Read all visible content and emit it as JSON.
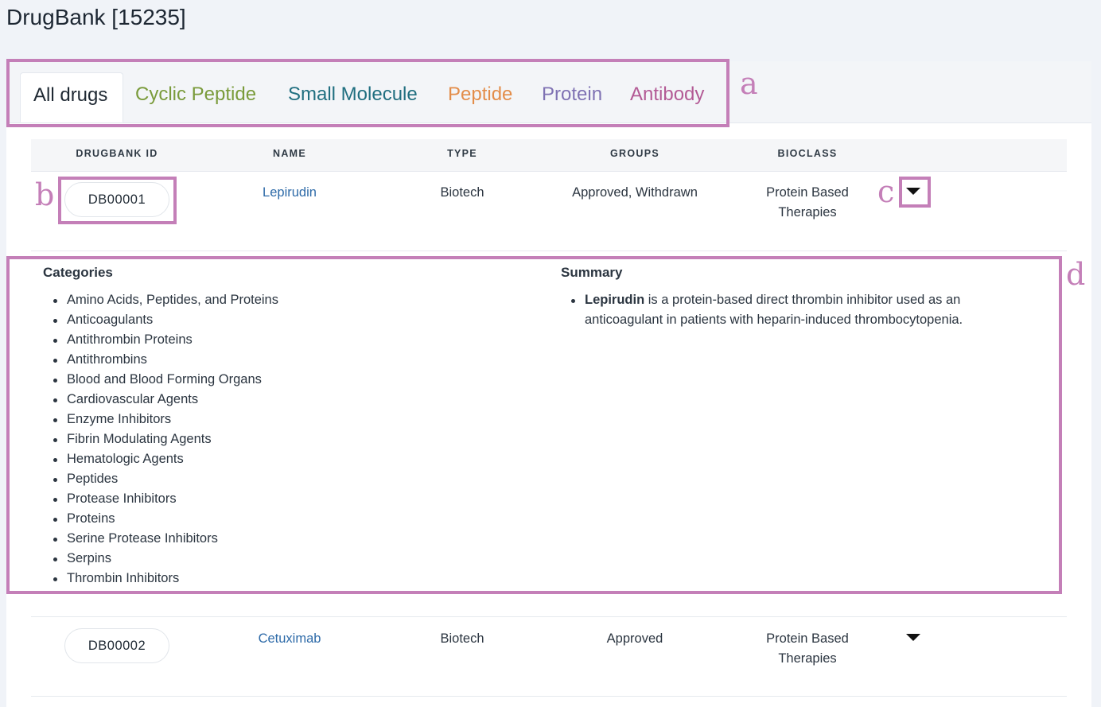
{
  "page": {
    "title": "DrugBank [15235]"
  },
  "tabs": [
    {
      "label": "All drugs",
      "color": "#1f2933",
      "active": true
    },
    {
      "label": "Cyclic Peptide",
      "color": "#7a9b3b"
    },
    {
      "label": "Small Molecule",
      "color": "#206f80"
    },
    {
      "label": "Peptide",
      "color": "#e38d4a"
    },
    {
      "label": "Protein",
      "color": "#7f72b3"
    },
    {
      "label": "Antibody",
      "color": "#b35a95"
    }
  ],
  "table": {
    "headers": [
      "DRUGBANK ID",
      "NAME",
      "TYPE",
      "GROUPS",
      "BIOCLASS"
    ],
    "rows": [
      {
        "id": "DB00001",
        "name": "Lepirudin",
        "type": "Biotech",
        "groups": "Approved, Withdrawn",
        "bioclass_line1": "Protein Based",
        "bioclass_line2": "Therapies"
      },
      {
        "id": "DB00002",
        "name": "Cetuximab",
        "type": "Biotech",
        "groups": "Approved",
        "bioclass_line1": "Protein Based",
        "bioclass_line2": "Therapies"
      }
    ]
  },
  "details": {
    "categories_title": "Categories",
    "categories": [
      "Amino Acids, Peptides, and Proteins",
      "Anticoagulants",
      "Antithrombin Proteins",
      "Antithrombins",
      "Blood and Blood Forming Organs",
      "Cardiovascular Agents",
      "Enzyme Inhibitors",
      "Fibrin Modulating Agents",
      "Hematologic Agents",
      "Peptides",
      "Protease Inhibitors",
      "Proteins",
      "Serine Protease Inhibitors",
      "Serpins",
      "Thrombin Inhibitors"
    ],
    "summary_title": "Summary",
    "summary_drug": "Lepirudin",
    "summary_text": " is a protein-based direct thrombin inhibitor used as an anticoagulant in patients with heparin-induced thrombocytopenia."
  },
  "annotations": {
    "a": "a",
    "b": "b",
    "c": "c",
    "d": "d",
    "color": "#c47fb8"
  }
}
